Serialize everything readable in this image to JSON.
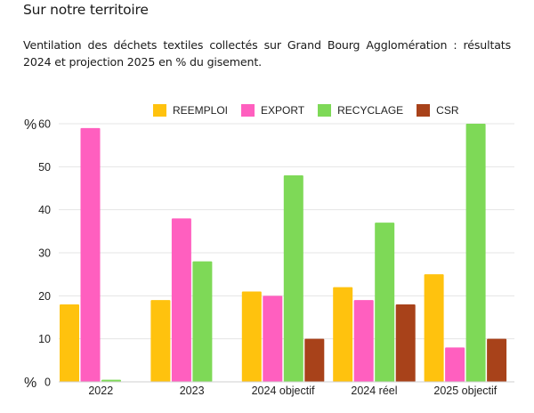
{
  "header": {
    "section_title": "Sur notre territoire",
    "subtitle": "Ventilation des déchets textiles collectés sur Grand Bourg Agglomération : résultats 2024 et projection 2025 en % du gisement."
  },
  "chart_data": {
    "type": "bar",
    "title": "",
    "xlabel": "",
    "ylabel": "%",
    "y_unit_top": "%",
    "y_unit_bottom": "%",
    "ylim": [
      0,
      60
    ],
    "yticks": [
      0,
      10,
      20,
      30,
      40,
      50,
      60
    ],
    "grid": true,
    "legend_position": "top-center",
    "categories": [
      "2022",
      "2023",
      "2024 objectif",
      "2024 réel",
      "2025 objectif"
    ],
    "series": [
      {
        "name": "REEMPLOI",
        "color": "#FFC20E",
        "values": [
          18,
          19,
          21,
          22,
          25
        ]
      },
      {
        "name": "EXPORT",
        "color": "#FF5FBF",
        "values": [
          59,
          38,
          20,
          19,
          8
        ]
      },
      {
        "name": "RECYCLAGE",
        "color": "#7ED957",
        "values": [
          0.5,
          28,
          48,
          37,
          60
        ]
      },
      {
        "name": "CSR",
        "color": "#A8421A",
        "values": [
          0,
          0,
          10,
          18,
          10
        ]
      }
    ]
  }
}
